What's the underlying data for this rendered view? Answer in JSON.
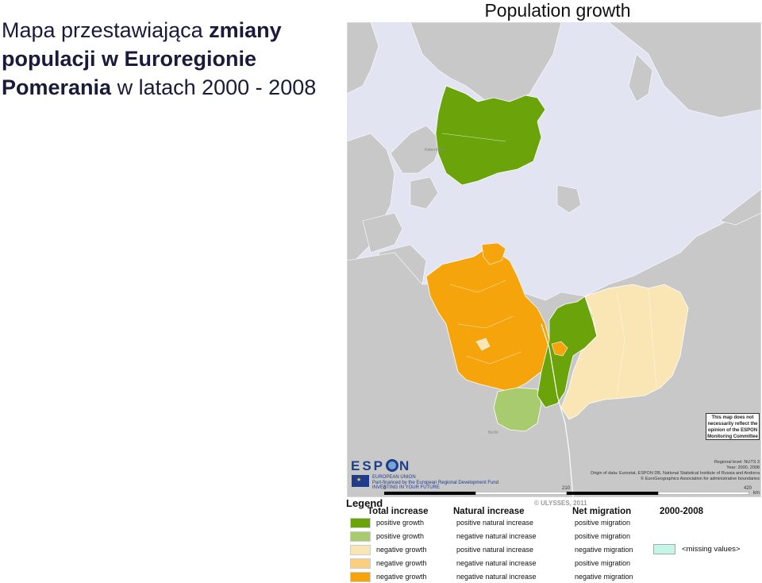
{
  "slide": {
    "title_part1": "Mapa przestawiająca ",
    "title_bold1": "zmiany populacji w Euroregionie Pomerania",
    "title_part2": " w latach 2000 - 2008"
  },
  "map": {
    "title": "Population growth",
    "cities": [
      "København",
      "Berlin"
    ],
    "disclaimer": "This map does not necessarily reflect the opinion of the ESPON Monitoring Committee",
    "info": {
      "regional_level": "Regional level: NUTS 3",
      "year": "Year: 2000, 2008",
      "origin": "Origin of data: Eurostat, ESPON DB, National Statistical Institute of Russia and Andorra",
      "copyright_egm": "© EuroGeographics Association for administrative boundaries"
    },
    "espon_logo": "ESPON",
    "eu_text": [
      "EUROPEAN UNION",
      "Part-financed by the European Regional Development Fund",
      "INVESTING IN YOUR FUTURE"
    ],
    "scale": {
      "labels": [
        "0",
        "210",
        "420"
      ],
      "unit": "km"
    },
    "copyright": "© ULYSSES, 2011",
    "colors": {
      "water": "#e2e4f2",
      "land": "#c8c8c8",
      "cat1": "#6aa30a",
      "cat2": "#a9cb6f",
      "cat3": "#fae6b5",
      "cat4": "#fbcf7f",
      "cat5": "#f5a50b",
      "missing": "#c4f5e6"
    }
  },
  "legend": {
    "title": "Legend",
    "headers": {
      "total": "Total increase",
      "natural": "Natural increase",
      "migration": "Net migration",
      "period": "2000-2008"
    },
    "rows": [
      {
        "color": "#6aa30a",
        "total": "positive growth",
        "natural": "positive natural increase",
        "migration": "positive migration"
      },
      {
        "color": "#a9cb6f",
        "total": "positive growth",
        "natural": "negative natural increase",
        "migration": "positive migration"
      },
      {
        "color": "#fae6b5",
        "total": "negative growth",
        "natural": "positive natural increase",
        "migration": "negative migration"
      },
      {
        "color": "#fbcf7f",
        "total": "negative growth",
        "natural": "negative natural increase",
        "migration": "positive migration"
      },
      {
        "color": "#f5a50b",
        "total": "negative growth",
        "natural": "negative natural increase",
        "migration": "negative migration"
      }
    ],
    "missing": "<missing values>"
  }
}
